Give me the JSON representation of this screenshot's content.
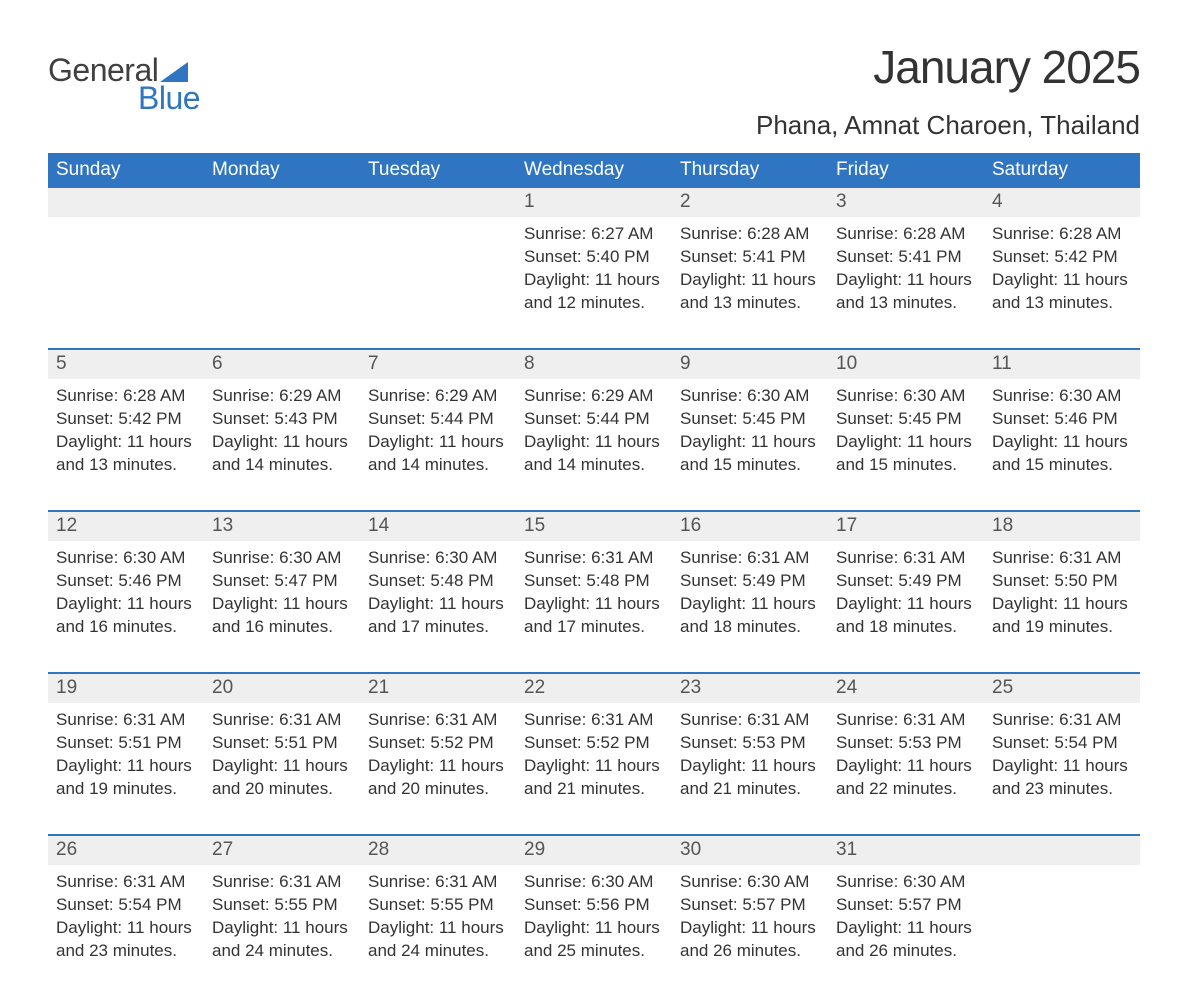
{
  "brand": {
    "part1": "General",
    "part2": "Blue",
    "color1": "#404040",
    "color2": "#2f75c2"
  },
  "title": "January 2025",
  "location": "Phana, Amnat Charoen, Thailand",
  "colors": {
    "header_bg": "#2f75c2",
    "header_fg": "#ffffff",
    "row_stripe": "#efefef",
    "row_border": "#2f75c2",
    "text": "#333333",
    "background": "#ffffff"
  },
  "fonts": {
    "title_size": 46,
    "location_size": 26,
    "header_size": 19,
    "body_size": 17
  },
  "weekdays": [
    "Sunday",
    "Monday",
    "Tuesday",
    "Wednesday",
    "Thursday",
    "Friday",
    "Saturday"
  ],
  "layout": {
    "columns": 7,
    "rows": 5,
    "start_day_index": 3
  },
  "weeks": [
    [
      null,
      null,
      null,
      {
        "day": "1",
        "sunrise": "Sunrise: 6:27 AM",
        "sunset": "Sunset: 5:40 PM",
        "daylight": "Daylight: 11 hours and 12 minutes."
      },
      {
        "day": "2",
        "sunrise": "Sunrise: 6:28 AM",
        "sunset": "Sunset: 5:41 PM",
        "daylight": "Daylight: 11 hours and 13 minutes."
      },
      {
        "day": "3",
        "sunrise": "Sunrise: 6:28 AM",
        "sunset": "Sunset: 5:41 PM",
        "daylight": "Daylight: 11 hours and 13 minutes."
      },
      {
        "day": "4",
        "sunrise": "Sunrise: 6:28 AM",
        "sunset": "Sunset: 5:42 PM",
        "daylight": "Daylight: 11 hours and 13 minutes."
      }
    ],
    [
      {
        "day": "5",
        "sunrise": "Sunrise: 6:28 AM",
        "sunset": "Sunset: 5:42 PM",
        "daylight": "Daylight: 11 hours and 13 minutes."
      },
      {
        "day": "6",
        "sunrise": "Sunrise: 6:29 AM",
        "sunset": "Sunset: 5:43 PM",
        "daylight": "Daylight: 11 hours and 14 minutes."
      },
      {
        "day": "7",
        "sunrise": "Sunrise: 6:29 AM",
        "sunset": "Sunset: 5:44 PM",
        "daylight": "Daylight: 11 hours and 14 minutes."
      },
      {
        "day": "8",
        "sunrise": "Sunrise: 6:29 AM",
        "sunset": "Sunset: 5:44 PM",
        "daylight": "Daylight: 11 hours and 14 minutes."
      },
      {
        "day": "9",
        "sunrise": "Sunrise: 6:30 AM",
        "sunset": "Sunset: 5:45 PM",
        "daylight": "Daylight: 11 hours and 15 minutes."
      },
      {
        "day": "10",
        "sunrise": "Sunrise: 6:30 AM",
        "sunset": "Sunset: 5:45 PM",
        "daylight": "Daylight: 11 hours and 15 minutes."
      },
      {
        "day": "11",
        "sunrise": "Sunrise: 6:30 AM",
        "sunset": "Sunset: 5:46 PM",
        "daylight": "Daylight: 11 hours and 15 minutes."
      }
    ],
    [
      {
        "day": "12",
        "sunrise": "Sunrise: 6:30 AM",
        "sunset": "Sunset: 5:46 PM",
        "daylight": "Daylight: 11 hours and 16 minutes."
      },
      {
        "day": "13",
        "sunrise": "Sunrise: 6:30 AM",
        "sunset": "Sunset: 5:47 PM",
        "daylight": "Daylight: 11 hours and 16 minutes."
      },
      {
        "day": "14",
        "sunrise": "Sunrise: 6:30 AM",
        "sunset": "Sunset: 5:48 PM",
        "daylight": "Daylight: 11 hours and 17 minutes."
      },
      {
        "day": "15",
        "sunrise": "Sunrise: 6:31 AM",
        "sunset": "Sunset: 5:48 PM",
        "daylight": "Daylight: 11 hours and 17 minutes."
      },
      {
        "day": "16",
        "sunrise": "Sunrise: 6:31 AM",
        "sunset": "Sunset: 5:49 PM",
        "daylight": "Daylight: 11 hours and 18 minutes."
      },
      {
        "day": "17",
        "sunrise": "Sunrise: 6:31 AM",
        "sunset": "Sunset: 5:49 PM",
        "daylight": "Daylight: 11 hours and 18 minutes."
      },
      {
        "day": "18",
        "sunrise": "Sunrise: 6:31 AM",
        "sunset": "Sunset: 5:50 PM",
        "daylight": "Daylight: 11 hours and 19 minutes."
      }
    ],
    [
      {
        "day": "19",
        "sunrise": "Sunrise: 6:31 AM",
        "sunset": "Sunset: 5:51 PM",
        "daylight": "Daylight: 11 hours and 19 minutes."
      },
      {
        "day": "20",
        "sunrise": "Sunrise: 6:31 AM",
        "sunset": "Sunset: 5:51 PM",
        "daylight": "Daylight: 11 hours and 20 minutes."
      },
      {
        "day": "21",
        "sunrise": "Sunrise: 6:31 AM",
        "sunset": "Sunset: 5:52 PM",
        "daylight": "Daylight: 11 hours and 20 minutes."
      },
      {
        "day": "22",
        "sunrise": "Sunrise: 6:31 AM",
        "sunset": "Sunset: 5:52 PM",
        "daylight": "Daylight: 11 hours and 21 minutes."
      },
      {
        "day": "23",
        "sunrise": "Sunrise: 6:31 AM",
        "sunset": "Sunset: 5:53 PM",
        "daylight": "Daylight: 11 hours and 21 minutes."
      },
      {
        "day": "24",
        "sunrise": "Sunrise: 6:31 AM",
        "sunset": "Sunset: 5:53 PM",
        "daylight": "Daylight: 11 hours and 22 minutes."
      },
      {
        "day": "25",
        "sunrise": "Sunrise: 6:31 AM",
        "sunset": "Sunset: 5:54 PM",
        "daylight": "Daylight: 11 hours and 23 minutes."
      }
    ],
    [
      {
        "day": "26",
        "sunrise": "Sunrise: 6:31 AM",
        "sunset": "Sunset: 5:54 PM",
        "daylight": "Daylight: 11 hours and 23 minutes."
      },
      {
        "day": "27",
        "sunrise": "Sunrise: 6:31 AM",
        "sunset": "Sunset: 5:55 PM",
        "daylight": "Daylight: 11 hours and 24 minutes."
      },
      {
        "day": "28",
        "sunrise": "Sunrise: 6:31 AM",
        "sunset": "Sunset: 5:55 PM",
        "daylight": "Daylight: 11 hours and 24 minutes."
      },
      {
        "day": "29",
        "sunrise": "Sunrise: 6:30 AM",
        "sunset": "Sunset: 5:56 PM",
        "daylight": "Daylight: 11 hours and 25 minutes."
      },
      {
        "day": "30",
        "sunrise": "Sunrise: 6:30 AM",
        "sunset": "Sunset: 5:57 PM",
        "daylight": "Daylight: 11 hours and 26 minutes."
      },
      {
        "day": "31",
        "sunrise": "Sunrise: 6:30 AM",
        "sunset": "Sunset: 5:57 PM",
        "daylight": "Daylight: 11 hours and 26 minutes."
      },
      null
    ]
  ]
}
